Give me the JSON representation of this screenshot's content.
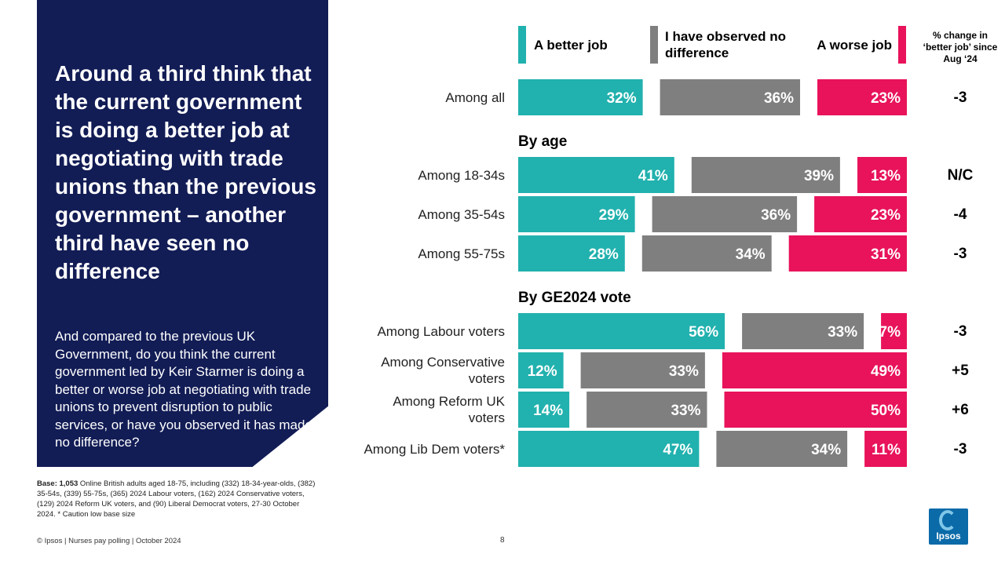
{
  "slide": {
    "headline": "Around a third think that the current government is doing a better job at negotiating with trade unions than the previous government – another third have seen no difference",
    "question": "And compared to the previous UK Government, do you think the current government led by Keir Starmer is doing a better or worse job at negotiating with trade unions to prevent disruption to public services, or have you observed it has made no difference?",
    "base_bold": "Base: 1,053",
    "base_text": " Online British adults aged 18-75, including (332) 18-34-year-olds, (382) 35-54s, (339) 55-75s, (365) 2024 Labour voters, (162) 2024 Conservative voters, (129) 2024 Reform UK voters, and (90) Liberal Democrat voters, 27-30 October 2024. * Caution low base size",
    "footer": "© Ipsos | Nurses pay polling | October 2024",
    "page_number": "8",
    "logo_text": "Ipsos"
  },
  "colors": {
    "panel": "#121c55",
    "better": "#21b1ae",
    "no_difference": "#7f7f7f",
    "worse": "#e8135a"
  },
  "chart_data": {
    "type": "bar",
    "orientation": "horizontal-stacked-separated",
    "series": [
      {
        "key": "better",
        "name": "A better job"
      },
      {
        "key": "no_difference",
        "name": "I have observed no difference"
      },
      {
        "key": "worse",
        "name": "A worse job"
      }
    ],
    "change_header": "% change in ‘better job’ since Aug ‘24",
    "sections": [
      "By age",
      "By GE2024 vote"
    ],
    "rows": [
      {
        "label": "Among all",
        "better": 32,
        "no_difference": 36,
        "worse": 23,
        "change": "-3"
      },
      {
        "label": "Among 18-34s",
        "better": 41,
        "no_difference": 39,
        "worse": 13,
        "change": "N/C"
      },
      {
        "label": "Among 35-54s",
        "better": 29,
        "no_difference": 36,
        "worse": 23,
        "change": "-4"
      },
      {
        "label": "Among 55-75s",
        "better": 28,
        "no_difference": 34,
        "worse": 31,
        "change": "-3"
      },
      {
        "label": "Among Labour voters",
        "better": 56,
        "no_difference": 33,
        "worse": 7,
        "change": "-3"
      },
      {
        "label": "Among Conservative voters",
        "better": 12,
        "no_difference": 33,
        "worse": 49,
        "change": "+5"
      },
      {
        "label": "Among Reform UK voters",
        "better": 14,
        "no_difference": 33,
        "worse": 50,
        "change": "+6"
      },
      {
        "label": "Among Lib Dem voters*",
        "better": 47,
        "no_difference": 34,
        "worse": 11,
        "change": "-3"
      }
    ]
  }
}
